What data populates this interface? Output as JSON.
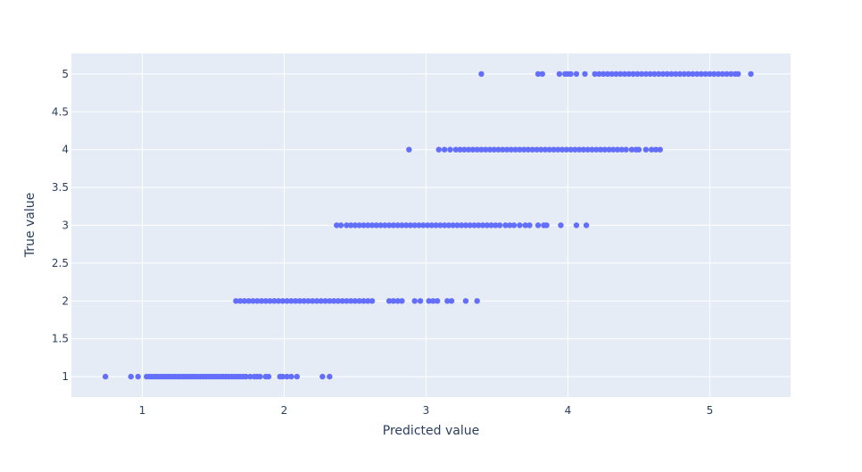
{
  "chart_data": {
    "type": "scatter",
    "xlabel": "Predicted value",
    "ylabel": "True value",
    "xlim": [
      0.5,
      5.57
    ],
    "ylim": [
      0.73,
      5.27
    ],
    "xticks": [
      "1",
      "2",
      "3",
      "4",
      "5"
    ],
    "yticks": [
      "1",
      "1.5",
      "2",
      "2.5",
      "3",
      "3.5",
      "4",
      "4.5",
      "5"
    ],
    "grid": true,
    "legend": "none",
    "marker_color": "#636efa",
    "plot_bg": "#e5ecf6",
    "series": [
      {
        "y": 1,
        "x": [
          0.74,
          0.92,
          0.97,
          1.03,
          1.05,
          1.07,
          1.09,
          1.11,
          1.13,
          1.15,
          1.17,
          1.19,
          1.21,
          1.23,
          1.25,
          1.27,
          1.29,
          1.31,
          1.33,
          1.35,
          1.37,
          1.39,
          1.41,
          1.43,
          1.45,
          1.47,
          1.49,
          1.51,
          1.53,
          1.55,
          1.57,
          1.59,
          1.61,
          1.63,
          1.65,
          1.67,
          1.69,
          1.71,
          1.73,
          1.76,
          1.79,
          1.81,
          1.83,
          1.87,
          1.89,
          1.97,
          1.99,
          2.02,
          2.05,
          2.09,
          2.27,
          2.32
        ]
      },
      {
        "y": 2,
        "x": [
          1.66,
          1.69,
          1.72,
          1.75,
          1.78,
          1.81,
          1.84,
          1.87,
          1.9,
          1.93,
          1.96,
          1.99,
          2.02,
          2.05,
          2.08,
          2.11,
          2.14,
          2.17,
          2.2,
          2.23,
          2.26,
          2.29,
          2.32,
          2.35,
          2.38,
          2.41,
          2.44,
          2.47,
          2.5,
          2.53,
          2.56,
          2.59,
          2.62,
          2.74,
          2.77,
          2.8,
          2.83,
          2.92,
          2.96,
          3.02,
          3.05,
          3.08,
          3.15,
          3.18,
          3.28,
          3.36
        ]
      },
      {
        "y": 3,
        "x": [
          2.37,
          2.4,
          2.44,
          2.47,
          2.5,
          2.53,
          2.56,
          2.59,
          2.62,
          2.65,
          2.68,
          2.71,
          2.74,
          2.77,
          2.8,
          2.83,
          2.86,
          2.89,
          2.92,
          2.95,
          2.98,
          3.01,
          3.04,
          3.07,
          3.1,
          3.13,
          3.16,
          3.19,
          3.22,
          3.25,
          3.28,
          3.31,
          3.34,
          3.37,
          3.4,
          3.43,
          3.46,
          3.49,
          3.52,
          3.56,
          3.59,
          3.62,
          3.66,
          3.7,
          3.73,
          3.79,
          3.83,
          3.85,
          3.95,
          4.06,
          4.13
        ]
      },
      {
        "y": 4,
        "x": [
          2.88,
          3.09,
          3.13,
          3.17,
          3.21,
          3.24,
          3.27,
          3.3,
          3.33,
          3.36,
          3.39,
          3.42,
          3.45,
          3.48,
          3.51,
          3.54,
          3.57,
          3.6,
          3.63,
          3.66,
          3.69,
          3.72,
          3.75,
          3.78,
          3.81,
          3.84,
          3.87,
          3.9,
          3.93,
          3.96,
          3.99,
          4.02,
          4.05,
          4.08,
          4.11,
          4.14,
          4.17,
          4.2,
          4.23,
          4.26,
          4.29,
          4.32,
          4.35,
          4.38,
          4.41,
          4.45,
          4.48,
          4.5,
          4.55,
          4.59,
          4.62,
          4.65
        ]
      },
      {
        "y": 5,
        "x": [
          3.39,
          3.79,
          3.82,
          3.94,
          3.98,
          4.0,
          4.02,
          4.06,
          4.12,
          4.19,
          4.22,
          4.25,
          4.28,
          4.31,
          4.34,
          4.37,
          4.4,
          4.43,
          4.46,
          4.49,
          4.52,
          4.55,
          4.58,
          4.61,
          4.64,
          4.67,
          4.7,
          4.73,
          4.76,
          4.79,
          4.82,
          4.85,
          4.88,
          4.91,
          4.94,
          4.97,
          5.0,
          5.03,
          5.06,
          5.09,
          5.12,
          5.15,
          5.18,
          5.2,
          5.29
        ]
      }
    ]
  }
}
